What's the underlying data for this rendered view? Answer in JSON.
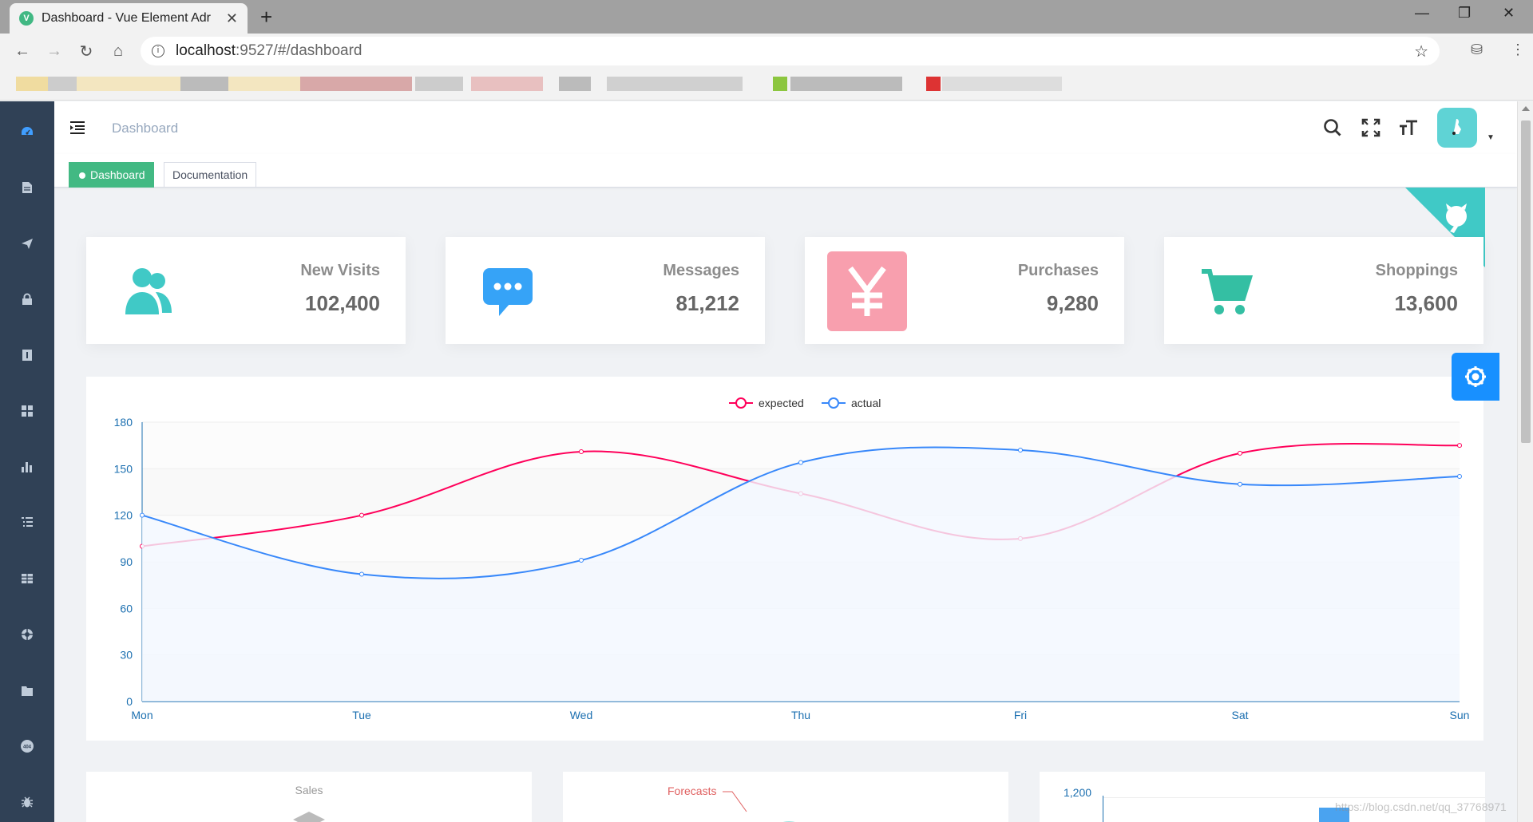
{
  "browser": {
    "tab_title": "Dashboard - Vue Element Adr",
    "tab_favicon": "V",
    "url_host": "localhost",
    "url_rest": ":9527/#/dashboard"
  },
  "header": {
    "breadcrumb": "Dashboard",
    "icons": [
      "search-icon",
      "fullscreen-icon",
      "font-size-icon"
    ]
  },
  "tags": [
    {
      "label": "Dashboard",
      "active": true
    },
    {
      "label": "Documentation",
      "active": false
    }
  ],
  "sidebar": {
    "icons": [
      "dashboard-icon",
      "documentation-icon",
      "guide-icon",
      "permission-icon",
      "icons-icon",
      "components-icon",
      "charts-icon",
      "nested-icon",
      "table-icon",
      "example-icon",
      "tab-icon",
      "error-page-icon",
      "error-log-icon"
    ]
  },
  "panels": [
    {
      "label": "New Visits",
      "value": "102,400",
      "color": "#40c9c6",
      "icon": "peoples-icon"
    },
    {
      "label": "Messages",
      "value": "81,212",
      "color": "#36a3f7",
      "icon": "message-icon"
    },
    {
      "label": "Purchases",
      "value": "9,280",
      "color": "#f4516c",
      "icon": "money-icon"
    },
    {
      "label": "Shoppings",
      "value": "13,600",
      "color": "#34bfa3",
      "icon": "shopping-icon"
    }
  ],
  "chart_data": {
    "type": "line",
    "categories": [
      "Mon",
      "Tue",
      "Wed",
      "Thu",
      "Fri",
      "Sat",
      "Sun"
    ],
    "series": [
      {
        "name": "expected",
        "color": "#ff005a",
        "values": [
          100,
          120,
          161,
          134,
          105,
          160,
          165
        ]
      },
      {
        "name": "actual",
        "color": "#3888fa",
        "values": [
          120,
          82,
          91,
          154,
          162,
          140,
          145
        ]
      }
    ],
    "ylim": [
      0,
      180
    ],
    "yticks": [
      0,
      30,
      60,
      90,
      120,
      150,
      180
    ],
    "grid": true,
    "legend": "top-center",
    "smooth": true
  },
  "bottom": {
    "radar_title": "Sales",
    "pie_label": "Forecasts",
    "bar_tick": "1,200"
  },
  "watermark": "https://blog.csdn.net/qq_37768971"
}
